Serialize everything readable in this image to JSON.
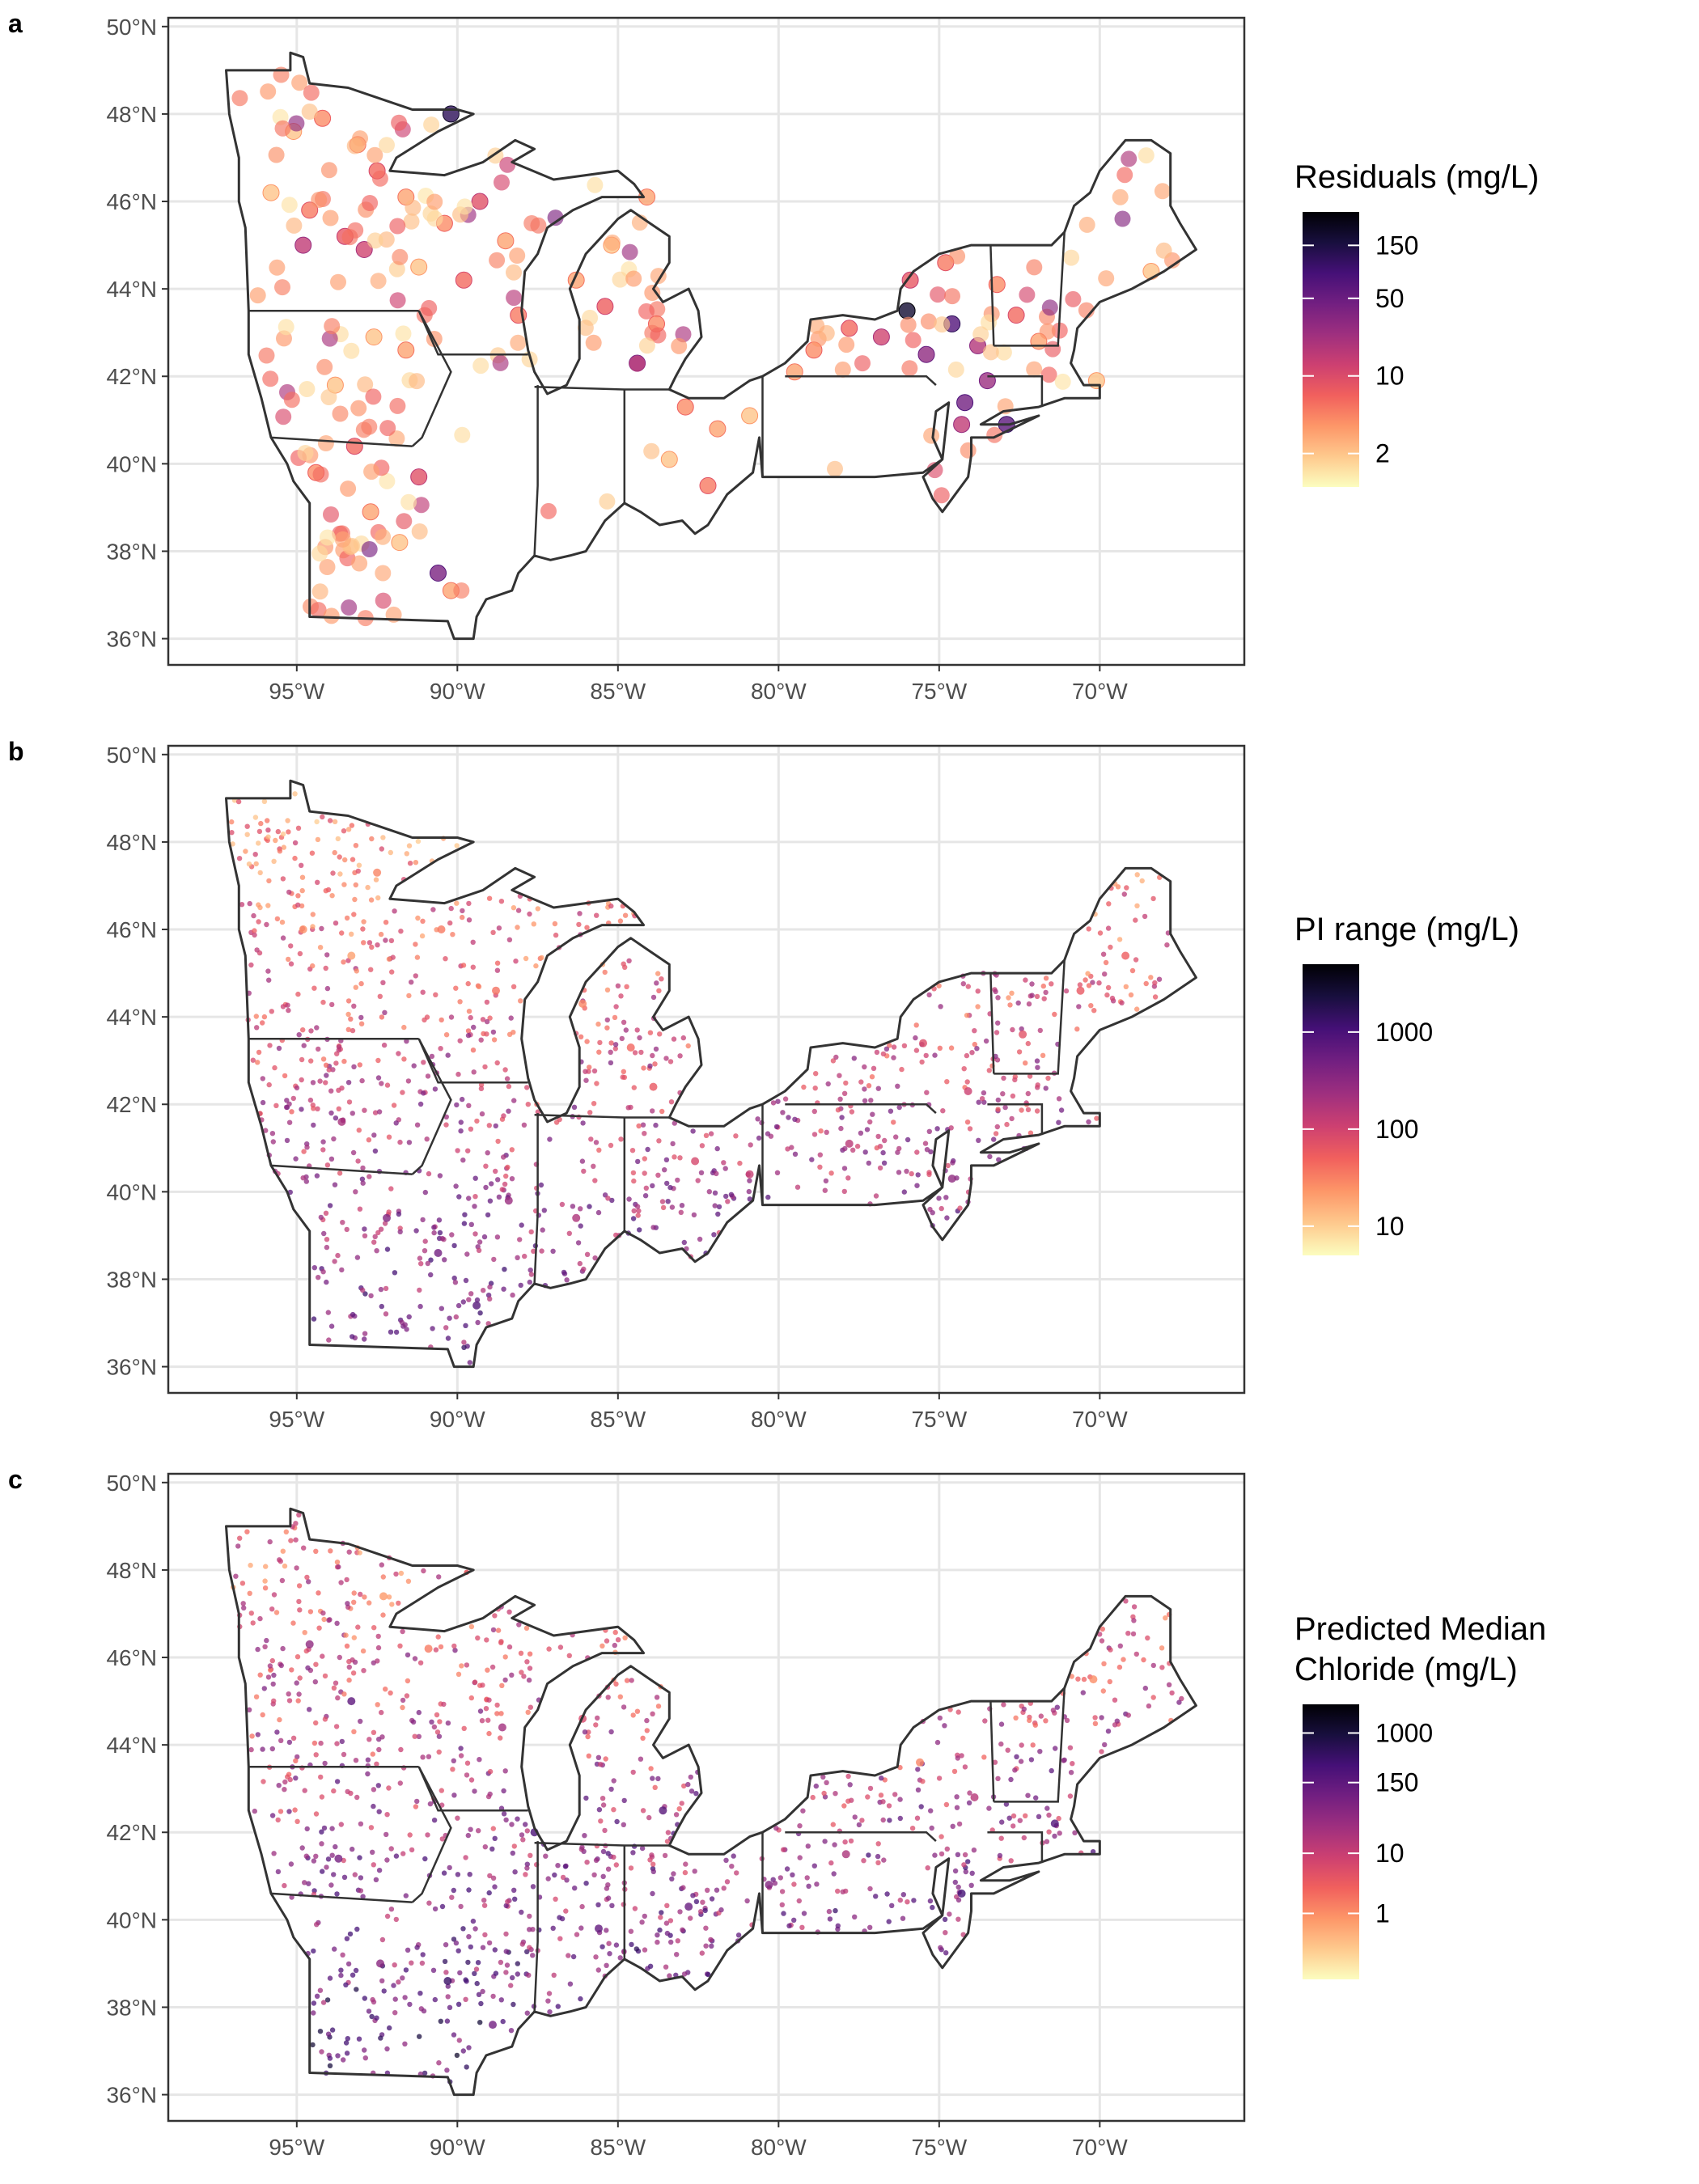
{
  "figure": {
    "colors": {
      "border": "#333333",
      "grid": "#e6e6e6",
      "tick_text": "#4d4d4d",
      "state_line": "#333333",
      "magma_scale": [
        "#fcfdbf",
        "#fec98d",
        "#fd9668",
        "#f1605d",
        "#cd4071",
        "#9e2f7f",
        "#721f81",
        "#451077",
        "#180f3e",
        "#000004"
      ]
    }
  },
  "chart_data": [
    {
      "type": "map-scatter",
      "panel_label": "a",
      "x_ticks": [
        "95°W",
        "90°W",
        "85°W",
        "80°W",
        "75°W",
        "70°W"
      ],
      "y_ticks": [
        "50°N",
        "48°N",
        "46°N",
        "44°N",
        "42°N",
        "40°N",
        "38°N",
        "36°N"
      ],
      "x_tick_values": [
        -95,
        -90,
        -85,
        -80,
        -75,
        -70
      ],
      "y_tick_values": [
        50,
        48,
        46,
        44,
        42,
        40,
        38,
        36
      ],
      "xlim": [
        -99,
        -65.5
      ],
      "ylim": [
        35.4,
        50.2
      ],
      "legend": {
        "title": "Residuals (mg/L)",
        "title_lines": [
          "Residuals (mg/L)"
        ],
        "scale": "log",
        "range": [
          1,
          300
        ],
        "tick_labels": [
          "150",
          "50",
          "10",
          "2"
        ],
        "tick_values": [
          150,
          50,
          10,
          2
        ]
      },
      "points": [
        {
          "lon": -95.1,
          "lat": 47.6,
          "value": 2
        },
        {
          "lon": -94.2,
          "lat": 47.9,
          "value": 4
        },
        {
          "lon": -93.1,
          "lat": 47.3,
          "value": 3
        },
        {
          "lon": -92.5,
          "lat": 46.7,
          "value": 6
        },
        {
          "lon": -95.8,
          "lat": 46.2,
          "value": 2
        },
        {
          "lon": -94.6,
          "lat": 45.8,
          "value": 5
        },
        {
          "lon": -93.5,
          "lat": 45.2,
          "value": 8
        },
        {
          "lon": -92.9,
          "lat": 44.9,
          "value": 12
        },
        {
          "lon": -94.8,
          "lat": 45.0,
          "value": 15
        },
        {
          "lon": -91.6,
          "lat": 46.1,
          "value": 3
        },
        {
          "lon": -90.4,
          "lat": 45.5,
          "value": 4
        },
        {
          "lon": -89.3,
          "lat": 46.0,
          "value": 9
        },
        {
          "lon": -88.5,
          "lat": 45.1,
          "value": 3
        },
        {
          "lon": -89.8,
          "lat": 44.2,
          "value": 6
        },
        {
          "lon": -88.1,
          "lat": 43.4,
          "value": 5
        },
        {
          "lon": -90.2,
          "lat": 48.0,
          "value": 120
        },
        {
          "lon": -91.2,
          "lat": 44.5,
          "value": 2
        },
        {
          "lon": -86.3,
          "lat": 44.2,
          "value": 3
        },
        {
          "lon": -85.4,
          "lat": 43.6,
          "value": 7
        },
        {
          "lon": -84.4,
          "lat": 42.3,
          "value": 22
        },
        {
          "lon": -83.8,
          "lat": 43.2,
          "value": 4
        },
        {
          "lon": -85.2,
          "lat": 45.0,
          "value": 2
        },
        {
          "lon": -84.1,
          "lat": 46.1,
          "value": 3
        },
        {
          "lon": -82.9,
          "lat": 41.3,
          "value": 4
        },
        {
          "lon": -81.9,
          "lat": 40.8,
          "value": 3
        },
        {
          "lon": -83.4,
          "lat": 40.1,
          "value": 2
        },
        {
          "lon": -82.2,
          "lat": 39.5,
          "value": 5
        },
        {
          "lon": -80.9,
          "lat": 41.1,
          "value": 2
        },
        {
          "lon": -93.2,
          "lat": 40.4,
          "value": 6
        },
        {
          "lon": -94.4,
          "lat": 39.8,
          "value": 4
        },
        {
          "lon": -92.7,
          "lat": 38.9,
          "value": 3
        },
        {
          "lon": -91.2,
          "lat": 39.7,
          "value": 9
        },
        {
          "lon": -90.6,
          "lat": 37.5,
          "value": 40
        },
        {
          "lon": -91.8,
          "lat": 38.2,
          "value": 2
        },
        {
          "lon": -90.2,
          "lat": 37.1,
          "value": 3
        },
        {
          "lon": -93.8,
          "lat": 41.8,
          "value": 2
        },
        {
          "lon": -91.6,
          "lat": 42.6,
          "value": 3
        },
        {
          "lon": -92.6,
          "lat": 42.9,
          "value": 2
        },
        {
          "lon": -76.0,
          "lat": 43.5,
          "value": 180
        },
        {
          "lon": -74.6,
          "lat": 43.2,
          "value": 70
        },
        {
          "lon": -75.4,
          "lat": 42.5,
          "value": 30
        },
        {
          "lon": -73.8,
          "lat": 42.7,
          "value": 18
        },
        {
          "lon": -74.2,
          "lat": 41.4,
          "value": 45
        },
        {
          "lon": -72.9,
          "lat": 40.9,
          "value": 60
        },
        {
          "lon": -76.8,
          "lat": 42.9,
          "value": 12
        },
        {
          "lon": -77.8,
          "lat": 43.1,
          "value": 6
        },
        {
          "lon": -78.9,
          "lat": 42.6,
          "value": 4
        },
        {
          "lon": -79.5,
          "lat": 42.1,
          "value": 3
        },
        {
          "lon": -75.9,
          "lat": 44.2,
          "value": 8
        },
        {
          "lon": -74.8,
          "lat": 44.6,
          "value": 5
        },
        {
          "lon": -73.2,
          "lat": 44.1,
          "value": 4
        },
        {
          "lon": -72.6,
          "lat": 43.4,
          "value": 6
        },
        {
          "lon": -71.9,
          "lat": 42.8,
          "value": 3
        },
        {
          "lon": -73.5,
          "lat": 41.9,
          "value": 25
        },
        {
          "lon": -70.1,
          "lat": 41.9,
          "value": 2
        },
        {
          "lon": -68.4,
          "lat": 44.4,
          "value": 2
        },
        {
          "lon": -74.3,
          "lat": 40.9,
          "value": 15
        }
      ]
    },
    {
      "type": "map-scatter",
      "panel_label": "b",
      "x_ticks": [
        "95°W",
        "90°W",
        "85°W",
        "80°W",
        "75°W",
        "70°W"
      ],
      "y_ticks": [
        "50°N",
        "48°N",
        "46°N",
        "44°N",
        "42°N",
        "40°N",
        "38°N",
        "36°N"
      ],
      "x_tick_values": [
        -95,
        -90,
        -85,
        -80,
        -75,
        -70
      ],
      "y_tick_values": [
        50,
        48,
        46,
        44,
        42,
        40,
        38,
        36
      ],
      "xlim": [
        -99,
        -65.5
      ],
      "ylim": [
        35.4,
        50.2
      ],
      "legend": {
        "title": "PI range (mg/L)",
        "title_lines": [
          "PI range (mg/L)"
        ],
        "scale": "log",
        "range": [
          5,
          5000
        ],
        "tick_labels": [
          "1000",
          "100",
          "10"
        ],
        "tick_values": [
          1000,
          100,
          10
        ]
      },
      "points": [
        {
          "lon": -94.8,
          "lat": 46.0,
          "value": 25
        },
        {
          "lon": -93.3,
          "lat": 45.4,
          "value": 20
        },
        {
          "lon": -92.5,
          "lat": 47.3,
          "value": 30
        },
        {
          "lon": -90.5,
          "lat": 46.0,
          "value": 35
        },
        {
          "lon": -88.8,
          "lat": 44.6,
          "value": 40
        },
        {
          "lon": -86.1,
          "lat": 44.3,
          "value": 30
        },
        {
          "lon": -84.6,
          "lat": 43.3,
          "value": 45
        },
        {
          "lon": -83.9,
          "lat": 42.4,
          "value": 60
        },
        {
          "lon": -82.6,
          "lat": 40.7,
          "value": 90
        },
        {
          "lon": -80.9,
          "lat": 40.4,
          "value": 120
        },
        {
          "lon": -77.8,
          "lat": 41.1,
          "value": 150
        },
        {
          "lon": -75.5,
          "lat": 43.4,
          "value": 80
        },
        {
          "lon": -74.1,
          "lat": 42.3,
          "value": 110
        },
        {
          "lon": -72.4,
          "lat": 43.6,
          "value": 70
        },
        {
          "lon": -70.6,
          "lat": 44.6,
          "value": 60
        },
        {
          "lon": -69.2,
          "lat": 45.4,
          "value": 55
        },
        {
          "lon": -74.6,
          "lat": 40.3,
          "value": 300
        },
        {
          "lon": -93.6,
          "lat": 41.6,
          "value": 200
        },
        {
          "lon": -92.2,
          "lat": 39.4,
          "value": 400
        },
        {
          "lon": -90.6,
          "lat": 38.6,
          "value": 500
        },
        {
          "lon": -88.4,
          "lat": 39.8,
          "value": 250
        },
        {
          "lon": -86.3,
          "lat": 39.4,
          "value": 180
        },
        {
          "lon": -89.4,
          "lat": 37.4,
          "value": 800
        }
      ]
    },
    {
      "type": "map-scatter",
      "panel_label": "c",
      "x_ticks": [
        "95°W",
        "90°W",
        "85°W",
        "80°W",
        "75°W",
        "70°W"
      ],
      "y_ticks": [
        "50°N",
        "48°N",
        "46°N",
        "44°N",
        "42°N",
        "40°N",
        "38°N",
        "36°N"
      ],
      "x_tick_values": [
        -95,
        -90,
        -85,
        -80,
        -75,
        -70
      ],
      "y_tick_values": [
        50,
        48,
        46,
        44,
        42,
        40,
        38,
        36
      ],
      "xlim": [
        -99,
        -65.5
      ],
      "ylim": [
        35.4,
        50.2
      ],
      "legend": {
        "title": "Predicted Median Chloride (mg/L)",
        "title_lines": [
          "Predicted Median",
          "Chloride (mg/L)"
        ],
        "scale": "log",
        "range": [
          0.08,
          3000
        ],
        "tick_labels": [
          "1000",
          "150",
          "10",
          "1"
        ],
        "tick_values": [
          1000,
          150,
          10,
          1
        ]
      },
      "points": [
        {
          "lon": -94.6,
          "lat": 46.3,
          "value": 40
        },
        {
          "lon": -93.3,
          "lat": 45.0,
          "value": 150
        },
        {
          "lon": -92.3,
          "lat": 47.4,
          "value": 0.8
        },
        {
          "lon": -90.9,
          "lat": 46.2,
          "value": 1.5
        },
        {
          "lon": -88.6,
          "lat": 44.4,
          "value": 25
        },
        {
          "lon": -87.6,
          "lat": 42.0,
          "value": 250
        },
        {
          "lon": -86.1,
          "lat": 44.6,
          "value": 6
        },
        {
          "lon": -83.6,
          "lat": 42.5,
          "value": 180
        },
        {
          "lon": -82.8,
          "lat": 40.3,
          "value": 120
        },
        {
          "lon": -80.3,
          "lat": 40.8,
          "value": 60
        },
        {
          "lon": -77.9,
          "lat": 41.5,
          "value": 20
        },
        {
          "lon": -75.6,
          "lat": 43.6,
          "value": 1.2
        },
        {
          "lon": -73.9,
          "lat": 42.8,
          "value": 15
        },
        {
          "lon": -71.4,
          "lat": 42.2,
          "value": 200
        },
        {
          "lon": -70.2,
          "lat": 45.5,
          "value": 1
        },
        {
          "lon": -74.3,
          "lat": 40.6,
          "value": 300
        },
        {
          "lon": -90.3,
          "lat": 38.6,
          "value": 400
        },
        {
          "lon": -93.7,
          "lat": 41.4,
          "value": 80
        },
        {
          "lon": -92.4,
          "lat": 39.0,
          "value": 50
        },
        {
          "lon": -88.9,
          "lat": 37.6,
          "value": 90
        },
        {
          "lon": -85.6,
          "lat": 39.8,
          "value": 140
        }
      ]
    }
  ]
}
